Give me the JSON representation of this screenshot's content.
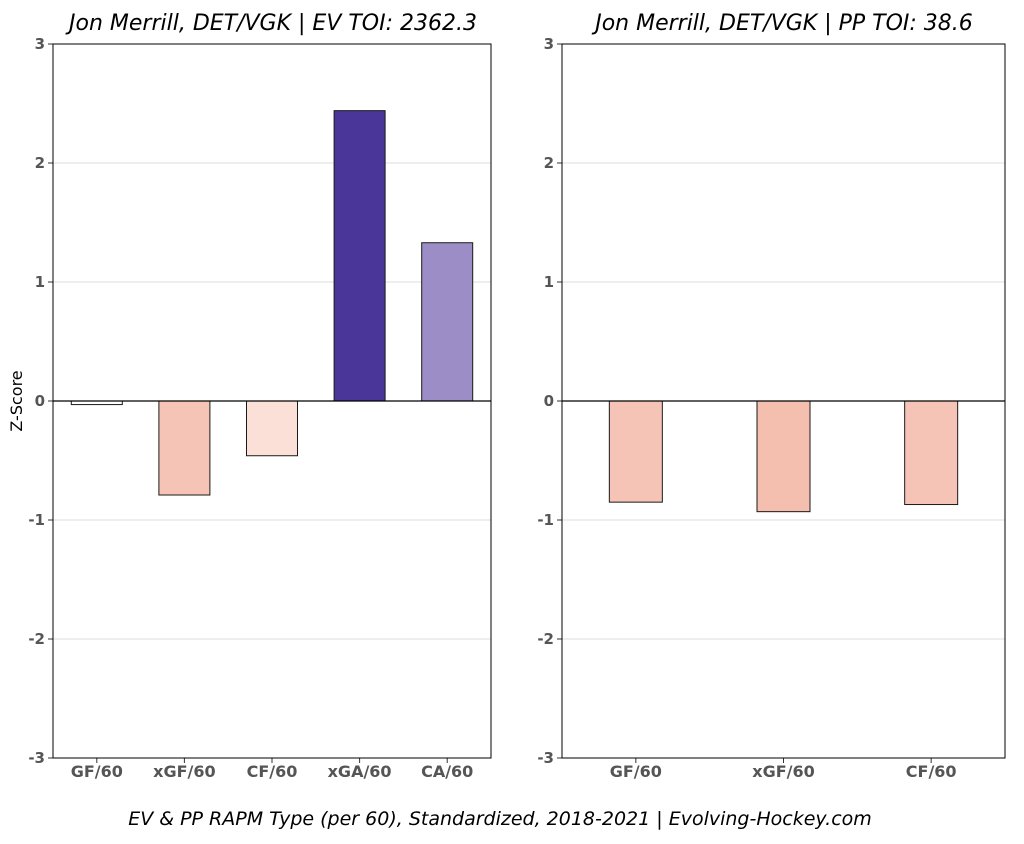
{
  "chart_data": [
    {
      "type": "bar",
      "title": "Jon Merrill, DET/VGK  |  EV TOI: 2362.3",
      "ylabel": "Z-Score",
      "xlabel": "",
      "ylim": [
        -3,
        3
      ],
      "yticks": [
        -3,
        -2,
        -1,
        0,
        1,
        2,
        3
      ],
      "grid": "horizontal",
      "categories": [
        "GF/60",
        "xGF/60",
        "CF/60",
        "xGA/60",
        "CA/60"
      ],
      "values": [
        -0.03,
        -0.79,
        -0.46,
        2.44,
        1.33
      ],
      "colors": [
        "#ffffff",
        "#f6c4b6",
        "#fbe0d8",
        "#4a3699",
        "#9d8dc7"
      ]
    },
    {
      "type": "bar",
      "title": "Jon Merrill, DET/VGK  |  PP TOI: 38.6",
      "ylabel": "",
      "xlabel": "",
      "ylim": [
        -3,
        3
      ],
      "yticks": [
        -3,
        -2,
        -1,
        0,
        1,
        2,
        3
      ],
      "grid": "horizontal",
      "categories": [
        "GF/60",
        "xGF/60",
        "CF/60"
      ],
      "values": [
        -0.85,
        -0.93,
        -0.87
      ],
      "colors": [
        "#f6c4b6",
        "#f4bfae",
        "#f6c4b6"
      ]
    }
  ],
  "caption": "EV & PP RAPM Type (per 60), Standardized, 2018-2021    |    Evolving-Hockey.com"
}
